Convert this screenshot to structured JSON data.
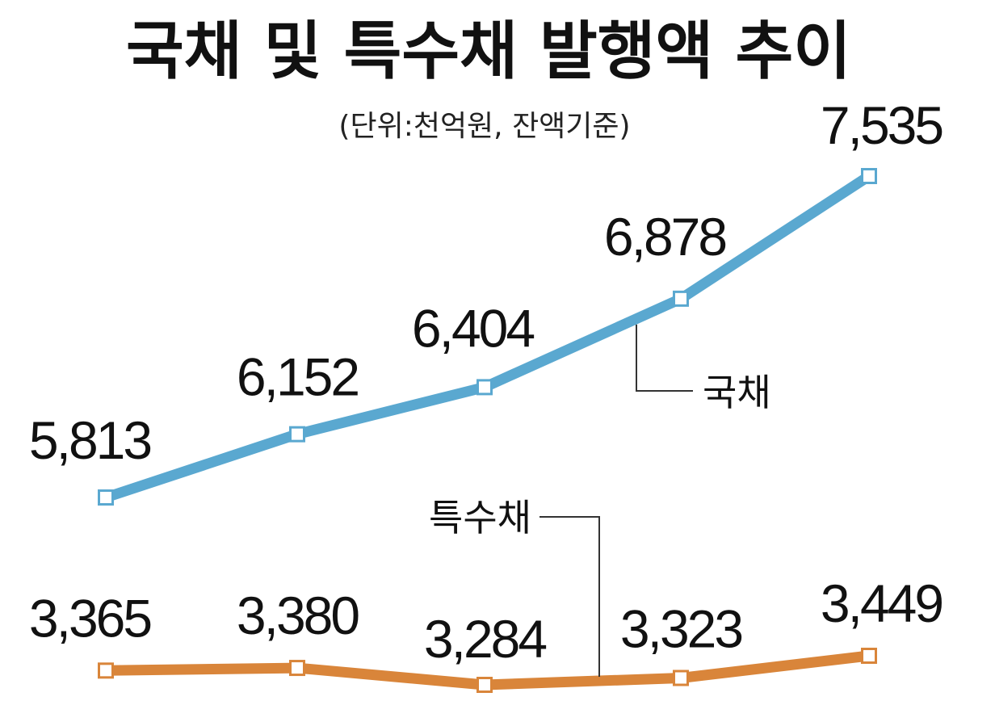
{
  "chart_data": {
    "type": "line",
    "title": "국채 및 특수채 발행액 추이",
    "subtitle": "(단위:천억원, 잔액기준)",
    "categories": [
      "",
      "",
      "",
      "",
      ""
    ],
    "series": [
      {
        "name": "국채",
        "values": [
          5813,
          6152,
          6404,
          6878,
          7535
        ],
        "labels": [
          "5,813",
          "6,152",
          "6,404",
          "6,878",
          "7,535"
        ],
        "color": "#5aa8d0"
      },
      {
        "name": "특수채",
        "values": [
          3365,
          3380,
          3284,
          3323,
          3449
        ],
        "labels": [
          "3,365",
          "3,380",
          "3,284",
          "3,323",
          "3,449"
        ],
        "color": "#d9853a"
      }
    ],
    "grid": false,
    "legend": "none"
  }
}
